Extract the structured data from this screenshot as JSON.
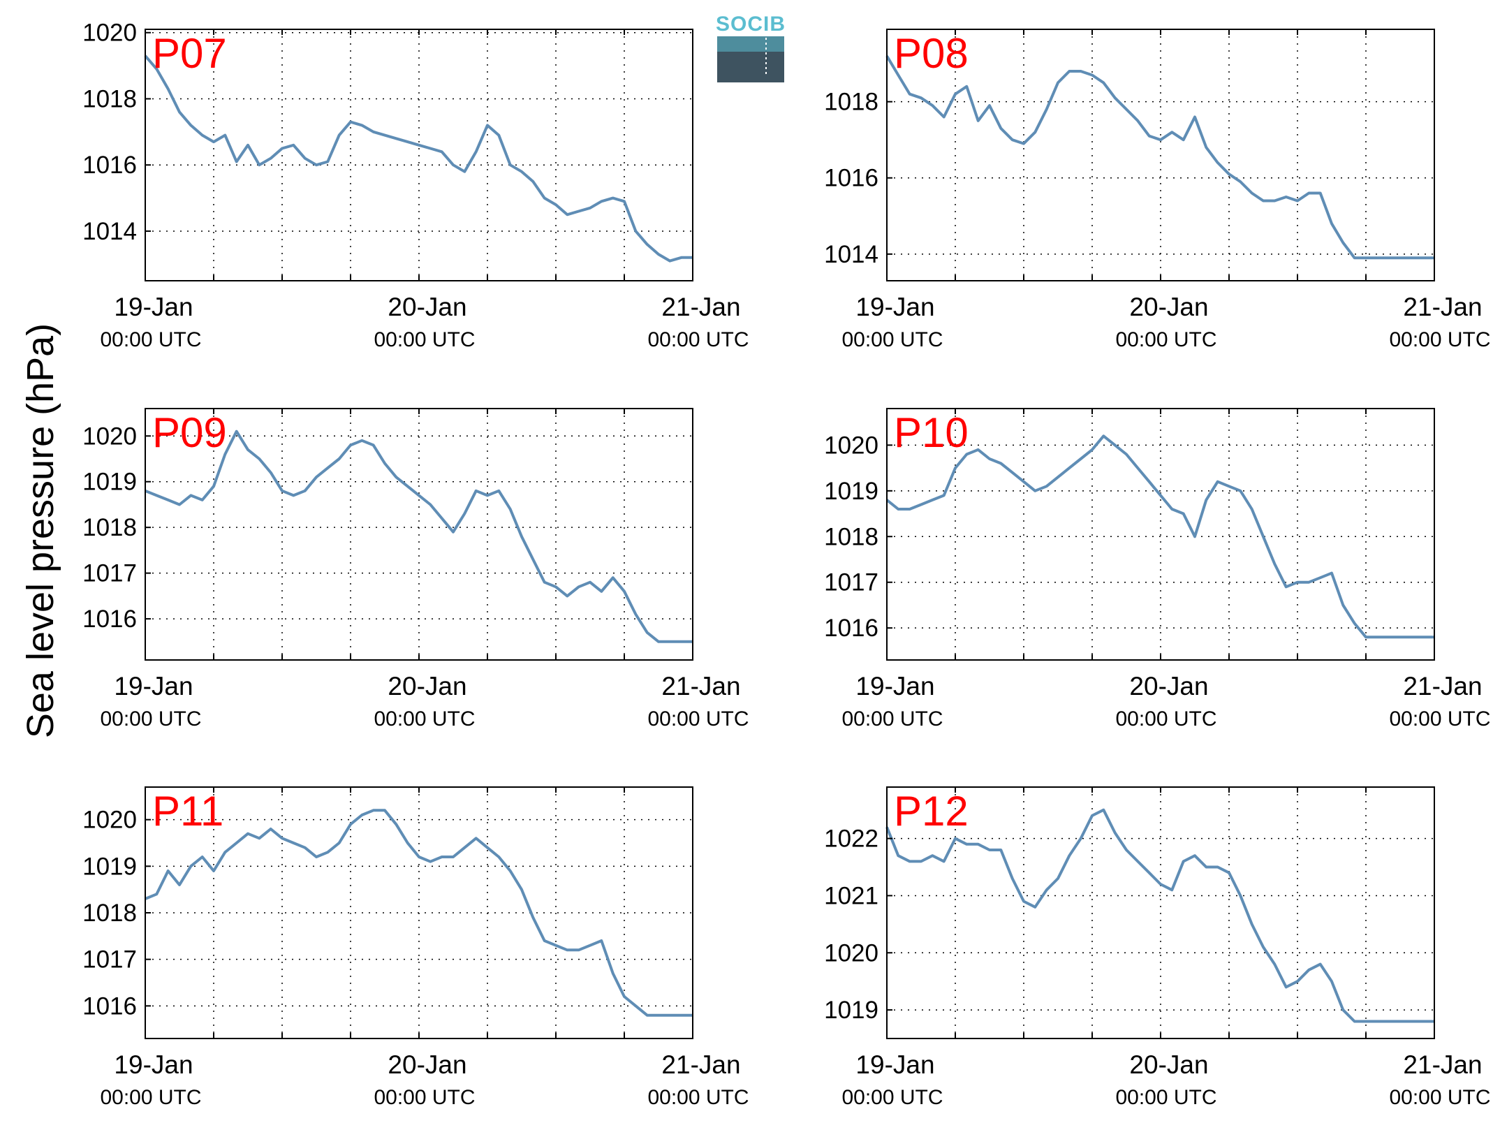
{
  "figure": {
    "ylabel": "Sea level pressure (hPa)",
    "logo_text": "SOCIB",
    "colors": {
      "line": "#5f8db5",
      "panel_label": "#ff0000",
      "axes": "#000000",
      "grid": "#000000"
    }
  },
  "x_ticks": {
    "major": [
      {
        "date": "19-Jan",
        "time": "00:00 UTC"
      },
      {
        "date": "20-Jan",
        "time": "00:00 UTC"
      },
      {
        "date": "21-Jan",
        "time": "00:00 UTC"
      }
    ]
  },
  "chart_data": [
    {
      "type": "line",
      "title": "P07",
      "x": [
        0,
        1,
        2,
        3,
        4,
        5,
        6,
        7,
        8,
        9,
        10,
        11,
        12,
        13,
        14,
        15,
        16,
        17,
        18,
        19,
        20,
        21,
        22,
        23,
        24,
        25,
        26,
        27,
        28,
        29,
        30,
        31,
        32,
        33,
        34,
        35,
        36,
        37,
        38,
        39,
        40,
        41,
        42,
        43,
        44,
        45,
        46,
        47,
        48
      ],
      "y": [
        1019.3,
        1018.9,
        1018.3,
        1017.6,
        1017.2,
        1016.9,
        1016.7,
        1016.9,
        1016.1,
        1016.6,
        1016.0,
        1016.2,
        1016.5,
        1016.6,
        1016.2,
        1016.0,
        1016.1,
        1016.9,
        1017.3,
        1017.2,
        1017.0,
        1016.9,
        1016.8,
        1016.7,
        1016.6,
        1016.5,
        1016.4,
        1016.0,
        1015.8,
        1016.4,
        1017.2,
        1016.9,
        1016.0,
        1015.8,
        1015.5,
        1015.0,
        1014.8,
        1014.5,
        1014.6,
        1014.7,
        1014.9,
        1015.0,
        1014.9,
        1014.0,
        1013.6,
        1013.3,
        1013.1,
        1013.2,
        1013.2
      ],
      "yticks": [
        1014,
        1016,
        1018,
        1020
      ],
      "ylim": [
        1012.5,
        1020.1
      ]
    },
    {
      "type": "line",
      "title": "P08",
      "x": [
        0,
        1,
        2,
        3,
        4,
        5,
        6,
        7,
        8,
        9,
        10,
        11,
        12,
        13,
        14,
        15,
        16,
        17,
        18,
        19,
        20,
        21,
        22,
        23,
        24,
        25,
        26,
        27,
        28,
        29,
        30,
        31,
        32,
        33,
        34,
        35,
        36,
        37,
        38,
        39,
        40,
        41,
        42,
        43,
        44,
        45,
        46,
        47,
        48
      ],
      "y": [
        1019.2,
        1018.7,
        1018.2,
        1018.1,
        1017.9,
        1017.6,
        1018.2,
        1018.4,
        1017.5,
        1017.9,
        1017.3,
        1017.0,
        1016.9,
        1017.2,
        1017.8,
        1018.5,
        1018.8,
        1018.8,
        1018.7,
        1018.5,
        1018.1,
        1017.8,
        1017.5,
        1017.1,
        1017.0,
        1017.2,
        1017.0,
        1017.6,
        1016.8,
        1016.4,
        1016.1,
        1015.9,
        1015.6,
        1015.4,
        1015.4,
        1015.5,
        1015.4,
        1015.6,
        1015.6,
        1014.8,
        1014.3,
        1013.9,
        1013.9,
        1013.9,
        1013.9,
        1013.9,
        1013.9,
        1013.9,
        1013.9
      ],
      "yticks": [
        1014,
        1016,
        1018
      ],
      "ylim": [
        1013.3,
        1019.9
      ]
    },
    {
      "type": "line",
      "title": "P09",
      "x": [
        0,
        1,
        2,
        3,
        4,
        5,
        6,
        7,
        8,
        9,
        10,
        11,
        12,
        13,
        14,
        15,
        16,
        17,
        18,
        19,
        20,
        21,
        22,
        23,
        24,
        25,
        26,
        27,
        28,
        29,
        30,
        31,
        32,
        33,
        34,
        35,
        36,
        37,
        38,
        39,
        40,
        41,
        42,
        43,
        44,
        45,
        46,
        47,
        48
      ],
      "y": [
        1018.8,
        1018.7,
        1018.6,
        1018.5,
        1018.7,
        1018.6,
        1018.9,
        1019.6,
        1020.1,
        1019.7,
        1019.5,
        1019.2,
        1018.8,
        1018.7,
        1018.8,
        1019.1,
        1019.3,
        1019.5,
        1019.8,
        1019.9,
        1019.8,
        1019.4,
        1019.1,
        1018.9,
        1018.7,
        1018.5,
        1018.2,
        1017.9,
        1018.3,
        1018.8,
        1018.7,
        1018.8,
        1018.4,
        1017.8,
        1017.3,
        1016.8,
        1016.7,
        1016.5,
        1016.7,
        1016.8,
        1016.6,
        1016.9,
        1016.6,
        1016.1,
        1015.7,
        1015.5,
        1015.5,
        1015.5,
        1015.5
      ],
      "yticks": [
        1016,
        1017,
        1018,
        1019,
        1020
      ],
      "ylim": [
        1015.1,
        1020.6
      ]
    },
    {
      "type": "line",
      "title": "P10",
      "x": [
        0,
        1,
        2,
        3,
        4,
        5,
        6,
        7,
        8,
        9,
        10,
        11,
        12,
        13,
        14,
        15,
        16,
        17,
        18,
        19,
        20,
        21,
        22,
        23,
        24,
        25,
        26,
        27,
        28,
        29,
        30,
        31,
        32,
        33,
        34,
        35,
        36,
        37,
        38,
        39,
        40,
        41,
        42,
        43,
        44,
        45,
        46,
        47,
        48
      ],
      "y": [
        1018.8,
        1018.6,
        1018.6,
        1018.7,
        1018.8,
        1018.9,
        1019.5,
        1019.8,
        1019.9,
        1019.7,
        1019.6,
        1019.4,
        1019.2,
        1019.0,
        1019.1,
        1019.3,
        1019.5,
        1019.7,
        1019.9,
        1020.2,
        1020.0,
        1019.8,
        1019.5,
        1019.2,
        1018.9,
        1018.6,
        1018.5,
        1018.0,
        1018.8,
        1019.2,
        1019.1,
        1019.0,
        1018.6,
        1018.0,
        1017.4,
        1016.9,
        1017.0,
        1017.0,
        1017.1,
        1017.2,
        1016.5,
        1016.1,
        1015.8,
        1015.8,
        1015.8,
        1015.8,
        1015.8,
        1015.8,
        1015.8
      ],
      "yticks": [
        1016,
        1017,
        1018,
        1019,
        1020
      ],
      "ylim": [
        1015.3,
        1020.8
      ]
    },
    {
      "type": "line",
      "title": "P11",
      "x": [
        0,
        1,
        2,
        3,
        4,
        5,
        6,
        7,
        8,
        9,
        10,
        11,
        12,
        13,
        14,
        15,
        16,
        17,
        18,
        19,
        20,
        21,
        22,
        23,
        24,
        25,
        26,
        27,
        28,
        29,
        30,
        31,
        32,
        33,
        34,
        35,
        36,
        37,
        38,
        39,
        40,
        41,
        42,
        43,
        44,
        45,
        46,
        47,
        48
      ],
      "y": [
        1018.3,
        1018.4,
        1018.9,
        1018.6,
        1019.0,
        1019.2,
        1018.9,
        1019.3,
        1019.5,
        1019.7,
        1019.6,
        1019.8,
        1019.6,
        1019.5,
        1019.4,
        1019.2,
        1019.3,
        1019.5,
        1019.9,
        1020.1,
        1020.2,
        1020.2,
        1019.9,
        1019.5,
        1019.2,
        1019.1,
        1019.2,
        1019.2,
        1019.4,
        1019.6,
        1019.4,
        1019.2,
        1018.9,
        1018.5,
        1017.9,
        1017.4,
        1017.3,
        1017.2,
        1017.2,
        1017.3,
        1017.4,
        1016.7,
        1016.2,
        1016.0,
        1015.8,
        1015.8,
        1015.8,
        1015.8,
        1015.8
      ],
      "yticks": [
        1016,
        1017,
        1018,
        1019,
        1020
      ],
      "ylim": [
        1015.3,
        1020.7
      ]
    },
    {
      "type": "line",
      "title": "P12",
      "x": [
        0,
        1,
        2,
        3,
        4,
        5,
        6,
        7,
        8,
        9,
        10,
        11,
        12,
        13,
        14,
        15,
        16,
        17,
        18,
        19,
        20,
        21,
        22,
        23,
        24,
        25,
        26,
        27,
        28,
        29,
        30,
        31,
        32,
        33,
        34,
        35,
        36,
        37,
        38,
        39,
        40,
        41,
        42,
        43,
        44,
        45,
        46,
        47,
        48
      ],
      "y": [
        1022.2,
        1021.7,
        1021.6,
        1021.6,
        1021.7,
        1021.6,
        1022.0,
        1021.9,
        1021.9,
        1021.8,
        1021.8,
        1021.3,
        1020.9,
        1020.8,
        1021.1,
        1021.3,
        1021.7,
        1022.0,
        1022.4,
        1022.5,
        1022.1,
        1021.8,
        1021.6,
        1021.4,
        1021.2,
        1021.1,
        1021.6,
        1021.7,
        1021.5,
        1021.5,
        1021.4,
        1021.0,
        1020.5,
        1020.1,
        1019.8,
        1019.4,
        1019.5,
        1019.7,
        1019.8,
        1019.5,
        1019.0,
        1018.8,
        1018.8,
        1018.8,
        1018.8,
        1018.8,
        1018.8,
        1018.8,
        1018.8
      ],
      "yticks": [
        1019,
        1020,
        1021,
        1022
      ],
      "ylim": [
        1018.5,
        1022.9
      ]
    }
  ]
}
